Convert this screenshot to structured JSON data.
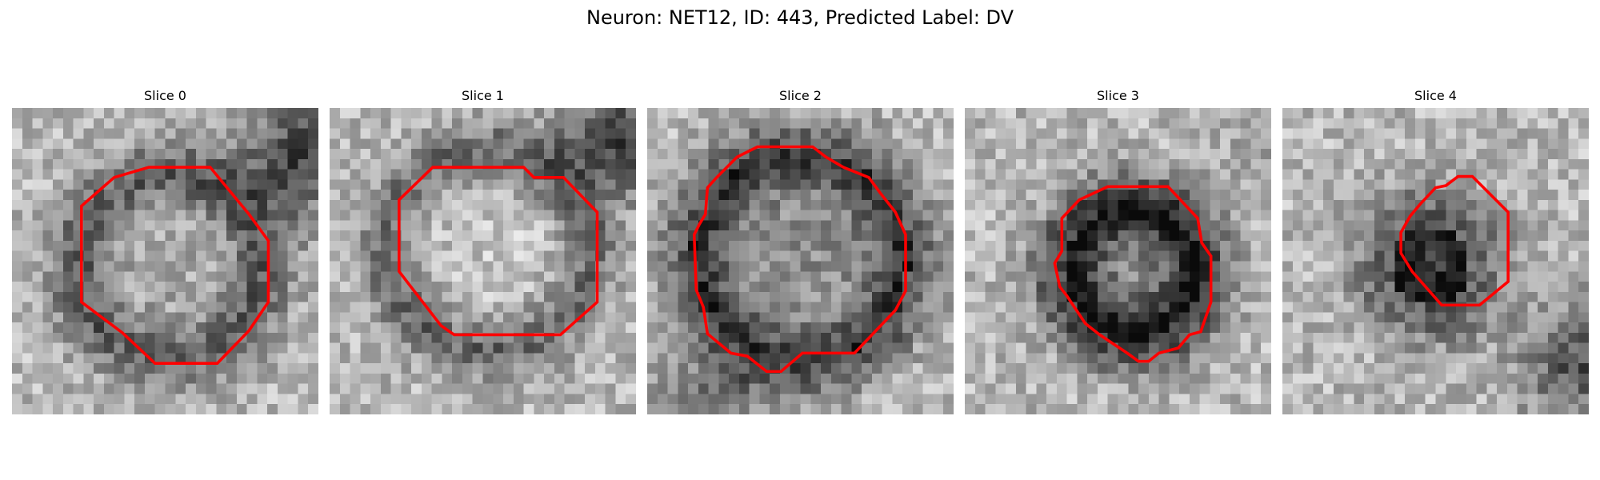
{
  "figure": {
    "title": "Neuron: NET12, ID: 443, Predicted Label: DV"
  },
  "colors": {
    "contour": "#ff0000"
  },
  "panels": [
    {
      "title": "Slice 0"
    },
    {
      "title": "Slice 1"
    },
    {
      "title": "Slice 2"
    },
    {
      "title": "Slice 3"
    },
    {
      "title": "Slice 4"
    }
  ]
}
